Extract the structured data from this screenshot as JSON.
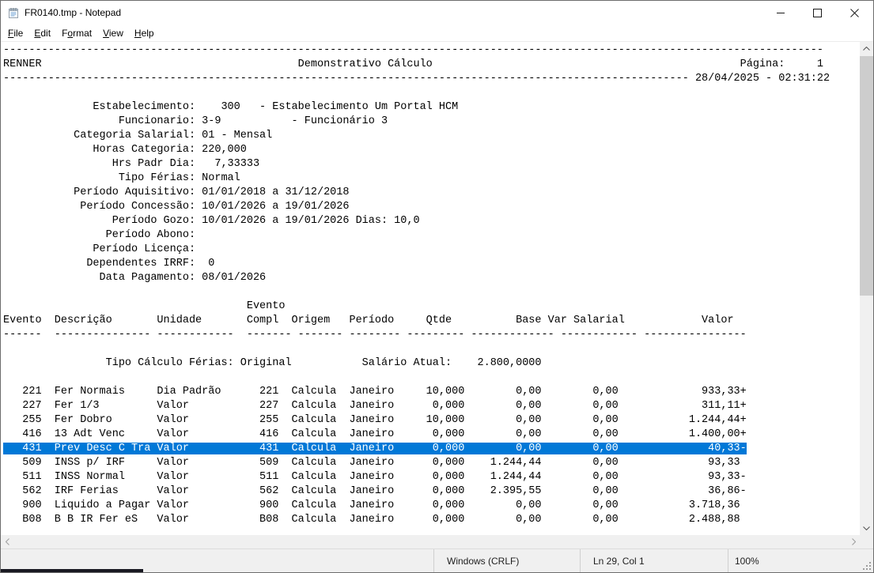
{
  "window": {
    "title": "FR0140.tmp - Notepad",
    "controls": [
      "minimize",
      "maximize",
      "close"
    ]
  },
  "menu": {
    "items": [
      {
        "name": "file",
        "pre": "",
        "accel": "F",
        "post": "ile"
      },
      {
        "name": "edit",
        "pre": "",
        "accel": "E",
        "post": "dit"
      },
      {
        "name": "format",
        "pre": "F",
        "accel": "o",
        "post": "rmat"
      },
      {
        "name": "view",
        "pre": "",
        "accel": "V",
        "post": "iew"
      },
      {
        "name": "help",
        "pre": "",
        "accel": "H",
        "post": "elp"
      }
    ]
  },
  "report": {
    "rulers": {
      "full": 128,
      "date": 107
    },
    "header": {
      "company": "RENNER",
      "title": "Demonstrativo Cálculo",
      "title_col": 46,
      "page_label": "Página:",
      "page_label_col": 115,
      "page_number": "1",
      "page_number_col": 127,
      "datetime": "28/04/2025 - 02:31:22"
    },
    "fields": [
      {
        "label": "Estabelecimento:",
        "value": "    300   - Estabelecimento Um Portal HCM"
      },
      {
        "label": "Funcionario:",
        "value": " 3-9           - Funcionário 3"
      },
      {
        "label": "Categoria Salarial:",
        "value": " 01 - Mensal"
      },
      {
        "label": "Horas Categoria:",
        "value": " 220,000"
      },
      {
        "label": "Hrs Padr Dia:",
        "value": "   7,33333"
      },
      {
        "label": "Tipo Férias:",
        "value": " Normal"
      },
      {
        "label": "Período Aquisitivo:",
        "value": " 01/01/2018 a 31/12/2018"
      },
      {
        "label": "Período Concessão:",
        "value": " 10/01/2026 a 19/01/2026"
      },
      {
        "label": "Período Gozo:",
        "value": " 10/01/2026 a 19/01/2026 Dias: 10,0"
      },
      {
        "label": "Período Abono:",
        "value": ""
      },
      {
        "label": "Período Licença:",
        "value": ""
      },
      {
        "label": "Dependentes IRRF:",
        "value": "  0"
      },
      {
        "label": "Data Pagamento:",
        "value": " 08/01/2026"
      }
    ]
  },
  "table": {
    "compl_header": {
      "label": "Evento",
      "col": 38
    },
    "columns": [
      {
        "label": "Evento",
        "col": 0
      },
      {
        "label": "Descrição",
        "col": 8
      },
      {
        "label": "Unidade",
        "col": 24
      },
      {
        "label": "Compl",
        "col": 38
      },
      {
        "label": "Origem",
        "col": 45
      },
      {
        "label": "Período",
        "col": 54
      },
      {
        "label": "Qtde",
        "col": 66
      },
      {
        "label": "Base",
        "col": 80
      },
      {
        "label": "Var Salarial",
        "col": 85
      },
      {
        "label": "Valor",
        "col": 109
      }
    ],
    "ruler": [
      [
        0,
        6
      ],
      [
        8,
        15
      ],
      [
        24,
        12
      ],
      [
        38,
        7
      ],
      [
        46,
        7
      ],
      [
        54,
        8
      ],
      [
        63,
        9
      ],
      [
        73,
        13
      ],
      [
        87,
        12
      ],
      [
        100,
        16
      ]
    ],
    "subtitle": {
      "text": "Tipo Cálculo Férias: Original",
      "col": 16,
      "salary_label": "Salário Atual:",
      "salary_label_col": 56,
      "salary_value": "2.800,0000",
      "salary_value_col": 74
    },
    "rows": [
      {
        "evento": "221",
        "descricao": "Fer Normais",
        "unidade": "Dia Padrão",
        "compl": "221",
        "origem": "Calcula",
        "periodo": "Janeiro",
        "qtde": "10,000",
        "base": "0,00",
        "var_salarial": "0,00",
        "valor": "933,33",
        "sinal": "+",
        "selected": false
      },
      {
        "evento": "227",
        "descricao": "Fer 1/3",
        "unidade": "Valor",
        "compl": "227",
        "origem": "Calcula",
        "periodo": "Janeiro",
        "qtde": "0,000",
        "base": "0,00",
        "var_salarial": "0,00",
        "valor": "311,11",
        "sinal": "+",
        "selected": false
      },
      {
        "evento": "255",
        "descricao": "Fer Dobro",
        "unidade": "Valor",
        "compl": "255",
        "origem": "Calcula",
        "periodo": "Janeiro",
        "qtde": "10,000",
        "base": "0,00",
        "var_salarial": "0,00",
        "valor": "1.244,44",
        "sinal": "+",
        "selected": false
      },
      {
        "evento": "416",
        "descricao": "13 Adt Venc",
        "unidade": "Valor",
        "compl": "416",
        "origem": "Calcula",
        "periodo": "Janeiro",
        "qtde": "0,000",
        "base": "0,00",
        "var_salarial": "0,00",
        "valor": "1.400,00",
        "sinal": "+",
        "selected": false
      },
      {
        "evento": "431",
        "descricao": "Prev Desc C Tra",
        "unidade": "Valor",
        "compl": "431",
        "origem": "Calcula",
        "periodo": "Janeiro",
        "qtde": "0,000",
        "base": "0,00",
        "var_salarial": "0,00",
        "valor": "40,33",
        "sinal": "-",
        "selected": true
      },
      {
        "evento": "509",
        "descricao": "INSS p/ IRF",
        "unidade": "Valor",
        "compl": "509",
        "origem": "Calcula",
        "periodo": "Janeiro",
        "qtde": "0,000",
        "base": "1.244,44",
        "var_salarial": "0,00",
        "valor": "93,33",
        "sinal": "",
        "selected": false
      },
      {
        "evento": "511",
        "descricao": "INSS Normal",
        "unidade": "Valor",
        "compl": "511",
        "origem": "Calcula",
        "periodo": "Janeiro",
        "qtde": "0,000",
        "base": "1.244,44",
        "var_salarial": "0,00",
        "valor": "93,33",
        "sinal": "-",
        "selected": false
      },
      {
        "evento": "562",
        "descricao": "IRF Ferias",
        "unidade": "Valor",
        "compl": "562",
        "origem": "Calcula",
        "periodo": "Janeiro",
        "qtde": "0,000",
        "base": "2.395,55",
        "var_salarial": "0,00",
        "valor": "36,86",
        "sinal": "-",
        "selected": false
      },
      {
        "evento": "900",
        "descricao": "Liquido a Pagar",
        "unidade": "Valor",
        "compl": "900",
        "origem": "Calcula",
        "periodo": "Janeiro",
        "qtde": "0,000",
        "base": "0,00",
        "var_salarial": "0,00",
        "valor": "3.718,36",
        "sinal": "",
        "selected": false
      },
      {
        "evento": "B08",
        "descricao": "B B IR Fer eS",
        "unidade": "Valor",
        "compl": "B08",
        "origem": "Calcula",
        "periodo": "Janeiro",
        "qtde": "0,000",
        "base": "0,00",
        "var_salarial": "0,00",
        "valor": "2.488,88",
        "sinal": "",
        "selected": false
      }
    ]
  },
  "status_bar": {
    "eol": "Windows (CRLF)",
    "cursor": "Ln 29, Col 1",
    "zoom": "100%"
  },
  "colors": {
    "selection": "#0078d7",
    "scrollbar_thumb": "#cdcdcd",
    "scrollbar_track": "#f0f0f0"
  }
}
